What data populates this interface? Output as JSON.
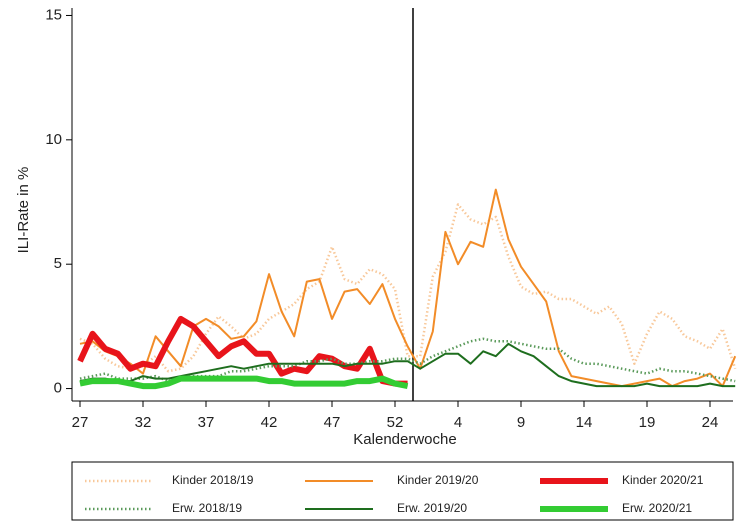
{
  "chart_data": {
    "type": "line",
    "categories": [
      "27",
      null,
      null,
      null,
      null,
      "32",
      null,
      null,
      null,
      null,
      "37",
      null,
      null,
      null,
      null,
      "42",
      null,
      null,
      null,
      null,
      "47",
      null,
      null,
      null,
      null,
      "52",
      null,
      null,
      null,
      null,
      "4",
      null,
      null,
      null,
      null,
      "9",
      null,
      null,
      null,
      null,
      "14",
      null,
      null,
      null,
      null,
      "19",
      null,
      null,
      null,
      null,
      "24",
      null,
      null
    ],
    "xlabel": "Kalenderwoche",
    "ylabel": "ILI-Rate in %",
    "ylim": [
      -0.5,
      15.3
    ],
    "yticks": [
      0,
      5,
      10,
      15
    ],
    "series": [
      {
        "name": "Kinder 2018/19",
        "color": "#f8c89a",
        "width": 2.5,
        "dotted": true,
        "values": [
          2.0,
          1.8,
          1.2,
          0.9,
          0.8,
          0.9,
          1.3,
          0.7,
          0.8,
          1.3,
          2.2,
          2.9,
          2.5,
          2.0,
          2.2,
          2.8,
          3.1,
          3.4,
          4.0,
          4.3,
          5.7,
          4.4,
          4.2,
          4.8,
          4.6,
          4.0,
          1.3,
          1.3,
          4.5,
          5.5,
          7.4,
          6.8,
          6.6,
          6.9,
          5.3,
          4.1,
          3.8,
          3.9,
          3.6,
          3.6,
          3.3,
          3.0,
          3.3,
          2.6,
          1.0,
          2.2,
          3.1,
          2.8,
          2.1,
          1.9,
          1.6,
          2.4,
          0.8
        ]
      },
      {
        "name": "Kinder 2019/20",
        "color": "#f28c28",
        "width": 2,
        "dotted": false,
        "values": [
          1.8,
          1.9,
          1.5,
          1.3,
          1.0,
          0.6,
          2.1,
          1.5,
          0.9,
          2.5,
          2.8,
          2.5,
          2.0,
          2.1,
          2.7,
          4.6,
          3.1,
          2.1,
          4.3,
          4.4,
          2.8,
          3.9,
          4.0,
          3.4,
          4.2,
          2.8,
          1.7,
          0.8,
          2.3,
          6.3,
          5.0,
          5.9,
          5.7,
          8.0,
          6.0,
          4.9,
          4.2,
          3.5,
          1.5,
          0.5,
          0.4,
          0.3,
          0.2,
          0.1,
          0.2,
          0.3,
          0.4,
          0.1,
          0.3,
          0.4,
          0.6,
          0.1,
          1.3
        ]
      },
      {
        "name": "Kinder 2020/21",
        "color": "#e8141b",
        "width": 6,
        "dotted": false,
        "values": [
          1.1,
          2.2,
          1.6,
          1.4,
          0.8,
          1.0,
          0.9,
          1.9,
          2.8,
          2.5,
          1.9,
          1.3,
          1.7,
          1.9,
          1.4,
          1.4,
          0.6,
          0.8,
          0.7,
          1.3,
          1.2,
          0.9,
          0.8,
          1.6,
          0.3,
          0.2,
          0.2,
          null,
          null,
          null,
          null,
          null,
          null,
          null,
          null,
          null,
          null,
          null,
          null,
          null,
          null,
          null,
          null,
          null,
          null,
          null,
          null,
          null,
          null,
          null,
          null,
          null,
          null
        ]
      },
      {
        "name": "Erw. 2018/19",
        "color": "#5a9a5a",
        "width": 2.5,
        "dotted": true,
        "values": [
          0.4,
          0.5,
          0.6,
          0.4,
          0.4,
          0.4,
          0.5,
          0.3,
          0.4,
          0.5,
          0.5,
          0.5,
          0.7,
          0.7,
          0.8,
          0.9,
          0.9,
          0.9,
          1.1,
          1.1,
          1.2,
          1.0,
          1.0,
          1.1,
          1.1,
          1.2,
          1.2,
          1.0,
          1.3,
          1.5,
          1.7,
          1.9,
          2.0,
          1.9,
          1.9,
          1.8,
          1.7,
          1.6,
          1.6,
          1.2,
          1.0,
          1.0,
          0.9,
          0.8,
          0.7,
          0.6,
          0.8,
          0.7,
          0.7,
          0.6,
          0.5,
          0.4,
          0.3
        ]
      },
      {
        "name": "Erw. 2019/20",
        "color": "#1e6e1e",
        "width": 2,
        "dotted": false,
        "values": [
          0.3,
          0.4,
          0.4,
          0.3,
          0.3,
          0.5,
          0.4,
          0.4,
          0.5,
          0.6,
          0.7,
          0.8,
          0.9,
          0.8,
          0.9,
          1.0,
          1.0,
          1.0,
          1.0,
          1.0,
          1.0,
          0.9,
          1.0,
          1.0,
          1.0,
          1.1,
          1.1,
          0.8,
          1.1,
          1.4,
          1.4,
          1.0,
          1.5,
          1.3,
          1.8,
          1.5,
          1.3,
          0.9,
          0.5,
          0.3,
          0.2,
          0.1,
          0.1,
          0.1,
          0.1,
          0.2,
          0.1,
          0.1,
          0.1,
          0.1,
          0.2,
          0.1,
          0.1
        ]
      },
      {
        "name": "Erw. 2020/21",
        "color": "#33cc33",
        "width": 6,
        "dotted": false,
        "values": [
          0.2,
          0.3,
          0.3,
          0.3,
          0.2,
          0.1,
          0.1,
          0.2,
          0.4,
          0.4,
          0.4,
          0.4,
          0.4,
          0.4,
          0.4,
          0.3,
          0.3,
          0.2,
          0.2,
          0.2,
          0.2,
          0.2,
          0.3,
          0.3,
          0.4,
          0.2,
          0.1,
          null,
          null,
          null,
          null,
          null,
          null,
          null,
          null,
          null,
          null,
          null,
          null,
          null,
          null,
          null,
          null,
          null,
          null,
          null,
          null,
          null,
          null,
          null,
          null,
          null,
          null
        ]
      }
    ]
  }
}
